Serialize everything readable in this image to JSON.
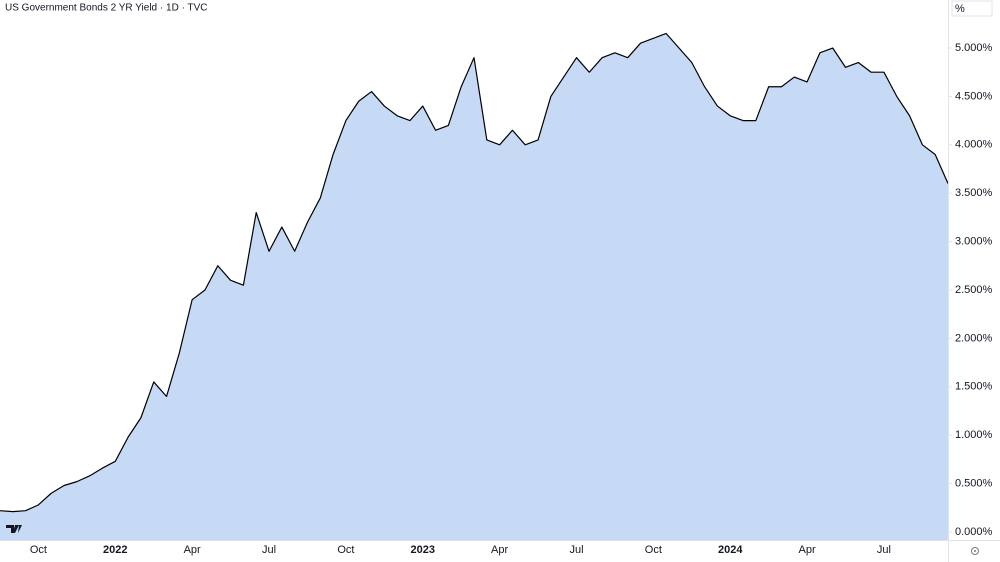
{
  "chart_data": {
    "type": "area",
    "title": "US Government Bonds 2 YR Yield · 1D · TVC",
    "unit_label": "%",
    "categories": [
      null,
      null,
      null,
      "Oct",
      null,
      null,
      null,
      null,
      null,
      "2022",
      null,
      null,
      null,
      null,
      null,
      "Apr",
      null,
      null,
      null,
      null,
      null,
      "Jul",
      null,
      null,
      null,
      null,
      null,
      "Oct",
      null,
      null,
      null,
      null,
      null,
      "2023",
      null,
      null,
      null,
      null,
      null,
      "Apr",
      null,
      null,
      null,
      null,
      null,
      "Jul",
      null,
      null,
      null,
      null,
      null,
      "Oct",
      null,
      null,
      null,
      null,
      null,
      "2024",
      null,
      null,
      null,
      null,
      null,
      "Apr",
      null,
      null,
      null,
      null,
      null,
      "Jul",
      null,
      null,
      null,
      null,
      null
    ],
    "values": [
      0.22,
      0.21,
      0.22,
      0.28,
      0.4,
      0.48,
      0.52,
      0.58,
      0.66,
      0.73,
      0.98,
      1.18,
      1.55,
      1.4,
      1.85,
      2.4,
      2.5,
      2.75,
      2.6,
      2.55,
      3.3,
      2.9,
      3.15,
      2.9,
      3.2,
      3.45,
      3.9,
      4.25,
      4.45,
      4.55,
      4.4,
      4.3,
      4.25,
      4.4,
      4.15,
      4.2,
      4.6,
      4.9,
      4.05,
      4.0,
      4.15,
      4.0,
      4.05,
      4.5,
      4.7,
      4.9,
      4.75,
      4.9,
      4.95,
      4.9,
      5.05,
      5.1,
      5.15,
      5.0,
      4.85,
      4.6,
      4.4,
      4.3,
      4.25,
      4.25,
      4.6,
      4.6,
      4.7,
      4.65,
      4.95,
      5.0,
      4.8,
      4.85,
      4.75,
      4.75,
      4.5,
      4.3,
      4.0,
      3.9,
      3.6
    ],
    "color": "#000000",
    "fill_color": "#c6daf5",
    "ylim": [
      -0.083,
      5.496
    ],
    "yticks": [
      {
        "value": 0,
        "label": "0.000%"
      },
      {
        "value": 0.5,
        "label": "0.500%"
      },
      {
        "value": 1,
        "label": "1.000%"
      },
      {
        "value": 1.5,
        "label": "1.500%"
      },
      {
        "value": 2,
        "label": "2.000%"
      },
      {
        "value": 2.5,
        "label": "2.500%"
      },
      {
        "value": 3,
        "label": "3.000%"
      },
      {
        "value": 3.5,
        "label": "3.500%"
      },
      {
        "value": 4,
        "label": "4.000%"
      },
      {
        "value": 4.5,
        "label": "4.500%"
      },
      {
        "value": 5,
        "label": "5.000%"
      }
    ],
    "grid": false
  }
}
